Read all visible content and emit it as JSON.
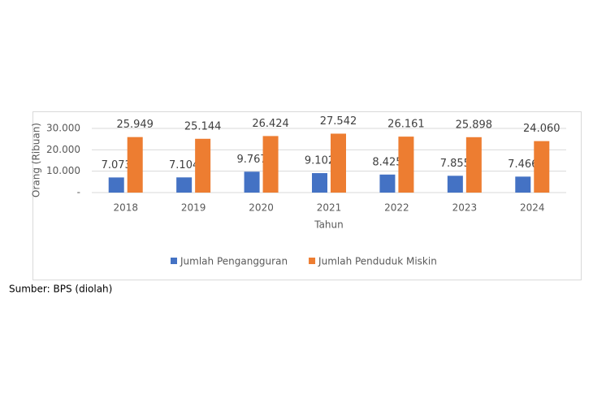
{
  "chart_data": {
    "type": "bar",
    "y_label": "Orang (Ribuan)",
    "x_label": "Tahun",
    "categories": [
      "2018",
      "2019",
      "2020",
      "2021",
      "2022",
      "2023",
      "2024"
    ],
    "series": [
      {
        "name": "Jumlah Pengangguran",
        "color": "#4472c4",
        "values": [
          7073,
          7104,
          9767,
          9102,
          8425,
          7855,
          7466
        ],
        "value_labels": [
          "7.073",
          "7.104",
          "9.767",
          "9.102",
          "8.425",
          "7.855",
          "7.466"
        ]
      },
      {
        "name": "Jumlah Penduduk Miskin",
        "color": "#ed7d31",
        "values": [
          25949,
          25144,
          26424,
          27542,
          26161,
          25898,
          24060
        ],
        "value_labels": [
          "25.949",
          "25.144",
          "26.424",
          "27.542",
          "26.161",
          "25.898",
          "24.060"
        ]
      }
    ],
    "ylim": [
      0,
      30000
    ],
    "yticks": [
      {
        "value": 0,
        "label": "-"
      },
      {
        "value": 10000,
        "label": "10.000"
      },
      {
        "value": 20000,
        "label": "20.000"
      },
      {
        "value": 30000,
        "label": "30.000"
      }
    ],
    "grid": true,
    "legend": "bottom",
    "source": "Sumber: BPS (diolah)"
  }
}
